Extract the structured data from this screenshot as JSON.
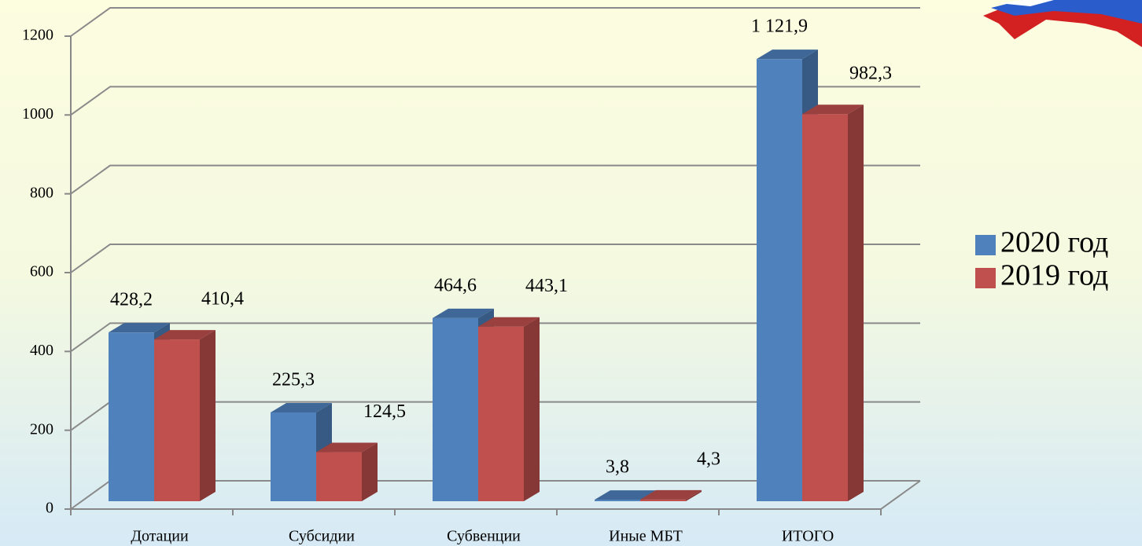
{
  "chart_data": {
    "type": "bar3d",
    "categories": [
      "Дотации",
      "Субсидии",
      "Субвенции",
      "Иные МБТ",
      "ИТОГО"
    ],
    "series": [
      {
        "name": "2020 год",
        "color": "#4f81bd",
        "values": [
          428.2,
          225.3,
          464.6,
          3.8,
          1121.9
        ],
        "value_labels": [
          "428,2",
          "225,3",
          "464,6",
          "3,8",
          "1 121,9"
        ]
      },
      {
        "name": "2019 год",
        "color": "#c0504d",
        "values": [
          410.4,
          124.5,
          443.1,
          4.3,
          982.3
        ],
        "value_labels": [
          "410,4",
          "124,5",
          "443,1",
          "4,3",
          "982,3"
        ]
      }
    ],
    "ylim": [
      0,
      1200
    ],
    "yticks": [
      0,
      200,
      400,
      600,
      800,
      1000,
      1200
    ],
    "grid": true,
    "legend": "right"
  }
}
